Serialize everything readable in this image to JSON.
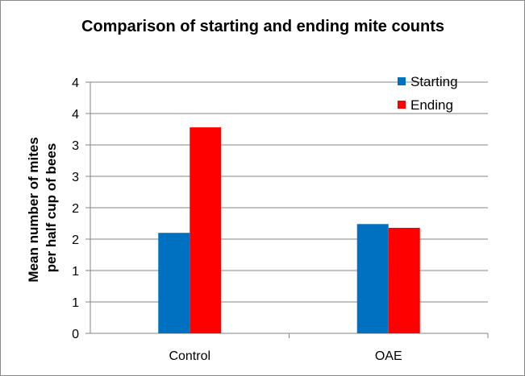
{
  "chart_data": {
    "type": "bar",
    "title": "Comparison of starting and ending mite counts",
    "xlabel": "",
    "ylabel_lines": [
      "Mean number of mites",
      "per half cup of bees"
    ],
    "categories": [
      "Control",
      "OAE"
    ],
    "series": [
      {
        "name": "Starting",
        "color": "#0070C0",
        "values": [
          1.6,
          1.74
        ]
      },
      {
        "name": "Ending",
        "color": "#FF0000",
        "values": [
          3.28,
          1.68
        ]
      }
    ],
    "ylim": [
      0,
      4
    ],
    "y_ticks": [
      0,
      0.5,
      1,
      1.5,
      2,
      2.5,
      3,
      3.5,
      4
    ],
    "y_tick_labels": [
      "0",
      "1",
      "1",
      "2",
      "2",
      "3",
      "3",
      "4",
      "4"
    ],
    "grid": true,
    "legend_position": "top-right"
  }
}
